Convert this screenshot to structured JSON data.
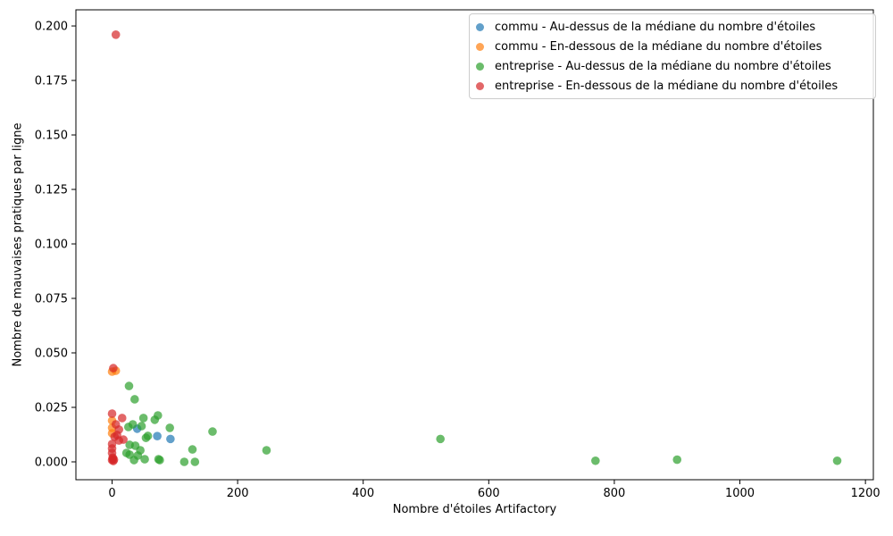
{
  "chart_data": {
    "type": "scatter",
    "title": "",
    "xlabel": "Nombre d'étoiles Artifactory",
    "ylabel": "Nombre de mauvaises pratiques par ligne",
    "xlim": [
      -57.6,
      1212.6
    ],
    "ylim": [
      -0.0082,
      0.2074
    ],
    "grid": false,
    "legend_position": "upper right",
    "marker": "circle",
    "marker_alpha": 0.7,
    "xticks": [
      {
        "v": 0,
        "label": "0"
      },
      {
        "v": 200,
        "label": "200"
      },
      {
        "v": 400,
        "label": "400"
      },
      {
        "v": 600,
        "label": "600"
      },
      {
        "v": 800,
        "label": "800"
      },
      {
        "v": 1000,
        "label": "1000"
      },
      {
        "v": 1200,
        "label": "1200"
      }
    ],
    "yticks": [
      {
        "v": 0.0,
        "label": "0.000"
      },
      {
        "v": 0.025,
        "label": "0.025"
      },
      {
        "v": 0.05,
        "label": "0.050"
      },
      {
        "v": 0.075,
        "label": "0.075"
      },
      {
        "v": 0.1,
        "label": "0.100"
      },
      {
        "v": 0.125,
        "label": "0.125"
      },
      {
        "v": 0.15,
        "label": "0.150"
      },
      {
        "v": 0.175,
        "label": "0.175"
      },
      {
        "v": 0.2,
        "label": "0.200"
      }
    ],
    "series": [
      {
        "label": "commu - Au-dessus de la médiane du nombre d'étoiles",
        "color": "#1f77b4",
        "points": [
          [
            40,
            0.0152
          ],
          [
            72,
            0.0118
          ],
          [
            93,
            0.0105
          ]
        ]
      },
      {
        "label": "commu - En-dessous de la médiane du nombre d'étoiles",
        "color": "#ff7f0e",
        "points": [
          [
            0,
            0.0414
          ],
          [
            6,
            0.0418
          ],
          [
            0,
            0.0189
          ],
          [
            0,
            0.0156
          ],
          [
            0,
            0.0131
          ]
        ]
      },
      {
        "label": "entreprise - Au-dessus de la médiane du nombre d'étoiles",
        "color": "#2ca02c",
        "points": [
          [
            27,
            0.0348
          ],
          [
            36,
            0.0287
          ],
          [
            50,
            0.0201
          ],
          [
            68,
            0.0193
          ],
          [
            73,
            0.0213
          ],
          [
            33,
            0.0172
          ],
          [
            47,
            0.0164
          ],
          [
            26,
            0.016
          ],
          [
            92,
            0.0156
          ],
          [
            160,
            0.0139
          ],
          [
            57,
            0.0119
          ],
          [
            54,
            0.011
          ],
          [
            28,
            0.0078
          ],
          [
            37,
            0.0074
          ],
          [
            45,
            0.0053
          ],
          [
            28,
            0.0033
          ],
          [
            41,
            0.0029
          ],
          [
            23,
            0.0041
          ],
          [
            52,
            0.0012
          ],
          [
            74,
            0.0012
          ],
          [
            76,
            0.0008
          ],
          [
            35,
            0.0008
          ],
          [
            115,
            0.0
          ],
          [
            132,
            0.0
          ],
          [
            128,
            0.0057
          ],
          [
            246,
            0.0053
          ],
          [
            523,
            0.0105
          ],
          [
            770,
            0.0005
          ],
          [
            900,
            0.001
          ],
          [
            1155,
            0.0005
          ]
        ]
      },
      {
        "label": "entreprise - En-dessous de la médiane du nombre d'étoiles",
        "color": "#d62728",
        "points": [
          [
            6,
            0.196
          ],
          [
            2,
            0.043
          ],
          [
            0,
            0.0221
          ],
          [
            16,
            0.0201
          ],
          [
            6,
            0.0172
          ],
          [
            11,
            0.0148
          ],
          [
            8,
            0.0123
          ],
          [
            4,
            0.0115
          ],
          [
            11,
            0.0098
          ],
          [
            18,
            0.0102
          ],
          [
            0,
            0.0082
          ],
          [
            0,
            0.0061
          ],
          [
            0,
            0.0041
          ],
          [
            1,
            0.002
          ],
          [
            1,
            0.0015
          ],
          [
            0,
            0.0008
          ],
          [
            2,
            0.0004
          ],
          [
            3,
            0.001
          ]
        ]
      }
    ]
  }
}
